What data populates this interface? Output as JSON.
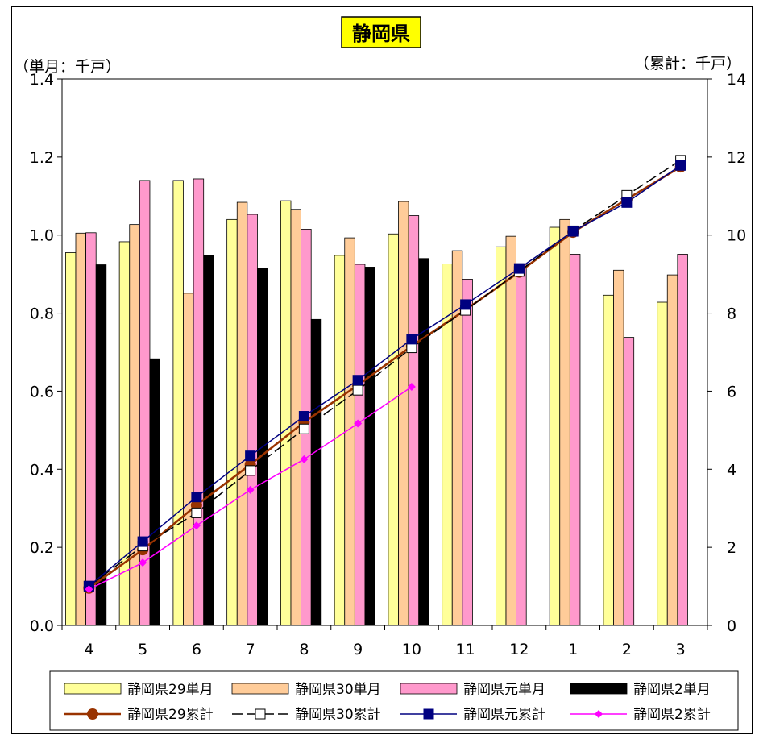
{
  "chart_data": {
    "type": "bar+line",
    "title": "静岡県",
    "ylabel_left": "（単月：千戸）",
    "ylabel_right": "（累計：千戸）",
    "categories": [
      "4",
      "5",
      "6",
      "7",
      "8",
      "9",
      "10",
      "11",
      "12",
      "1",
      "2",
      "3"
    ],
    "y_left": {
      "range": [
        0,
        1.4
      ],
      "ticks": [
        "0.0",
        "0.2",
        "0.4",
        "0.6",
        "0.8",
        "1.0",
        "1.2",
        "1.4"
      ]
    },
    "y_right": {
      "range": [
        0,
        14
      ],
      "ticks": [
        "0",
        "2",
        "4",
        "6",
        "8",
        "10",
        "12",
        "14"
      ]
    },
    "bar_series": [
      {
        "name": "静岡県29単月",
        "color": "#ffff99",
        "values": [
          0.955,
          0.983,
          1.14,
          1.04,
          1.088,
          0.948,
          1.003,
          0.926,
          0.97,
          1.02,
          0.846,
          0.828
        ]
      },
      {
        "name": "静岡県30単月",
        "color": "#ffcc99",
        "values": [
          1.005,
          1.027,
          0.851,
          1.084,
          1.066,
          0.993,
          1.086,
          0.96,
          0.997,
          1.04,
          0.91,
          0.898
        ]
      },
      {
        "name": "静岡県元単月",
        "color": "#ff99cc",
        "values": [
          1.006,
          1.14,
          1.144,
          1.053,
          1.015,
          0.925,
          1.05,
          0.887,
          0.925,
          0.951,
          0.738,
          0.951
        ]
      },
      {
        "name": "静岡県2単月",
        "color": "#000000",
        "values": [
          0.924,
          0.683,
          0.949,
          0.915,
          0.784,
          0.918,
          0.94,
          null,
          null,
          null,
          null,
          null
        ]
      }
    ],
    "line_series": [
      {
        "name": "静岡県29累計",
        "color": "#993300",
        "marker": "circle",
        "values": [
          0.955,
          1.938,
          3.078,
          4.118,
          5.206,
          6.154,
          7.157,
          8.083,
          9.053,
          10.073,
          10.919,
          11.747
        ]
      },
      {
        "name": "静岡県30累計",
        "color": "#000000",
        "marker": "open-square",
        "dashed": true,
        "values": [
          1.005,
          2.032,
          2.883,
          3.967,
          5.033,
          6.026,
          7.112,
          8.072,
          9.069,
          10.109,
          11.019,
          11.917
        ]
      },
      {
        "name": "静岡県元累計",
        "color": "#000080",
        "marker": "filled-square",
        "values": [
          1.006,
          2.146,
          3.29,
          4.343,
          5.358,
          6.283,
          7.333,
          8.22,
          9.145,
          10.096,
          10.834,
          11.785
        ]
      },
      {
        "name": "静岡県2累計",
        "color": "#ff00ff",
        "marker": "diamond",
        "values": [
          0.924,
          1.607,
          2.556,
          3.471,
          4.255,
          5.173,
          6.113,
          null,
          null,
          null,
          null,
          null
        ]
      }
    ],
    "legend_position": "bottom",
    "grid": false
  }
}
